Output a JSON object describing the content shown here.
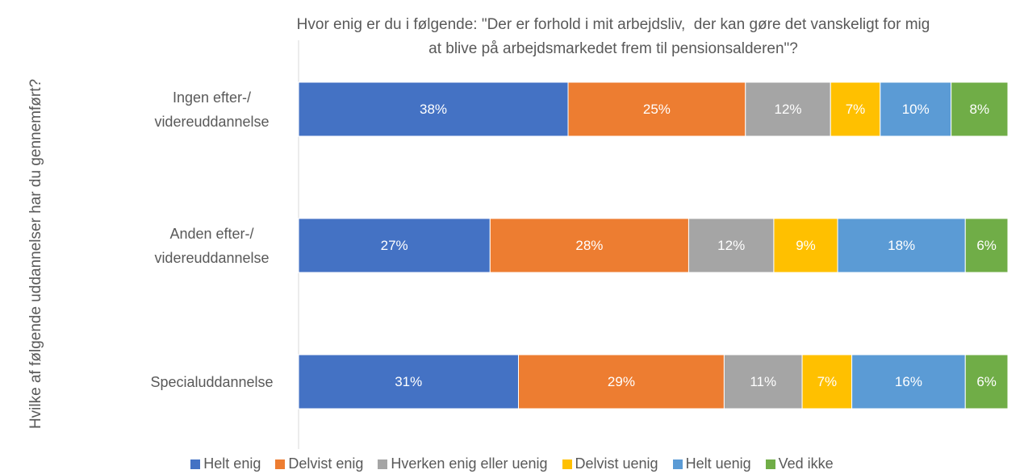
{
  "chart_data": {
    "type": "stacked-bar-horizontal",
    "title": [
      "Hvor enig er du i følgende: \"Der er forhold i mit arbejdsliv,  der kan gøre det vanskeligt for mig",
      "at blive på arbejdsmarkedet frem til pensionsalderen\"?"
    ],
    "y_axis_label": "Hvilke af følgende uddannelser har du gennemført?",
    "categories": [
      "Ingen efter-/ videreuddannelse",
      "Anden efter-/ videreuddannelse",
      "Specialuddannelse"
    ],
    "series": [
      {
        "name": "Helt enig",
        "color": "#4472c4",
        "values": [
          38,
          27,
          31
        ],
        "value_labels": [
          "38%",
          "27%",
          "31%"
        ]
      },
      {
        "name": "Delvist enig",
        "color": "#ed7d31",
        "values": [
          25,
          28,
          29
        ],
        "value_labels": [
          "25%",
          "28%",
          "29%"
        ]
      },
      {
        "name": "Hverken enig eller uenig",
        "color": "#a5a5a5",
        "values": [
          12,
          12,
          11
        ],
        "value_labels": [
          "12%",
          "12%",
          "11%"
        ]
      },
      {
        "name": "Delvist uenig",
        "color": "#ffc000",
        "values": [
          7,
          9,
          7
        ],
        "value_labels": [
          "7%",
          "9%",
          "7%"
        ]
      },
      {
        "name": "Helt uenig",
        "color": "#5b9bd5",
        "values": [
          10,
          18,
          16
        ],
        "value_labels": [
          "10%",
          "18%",
          "16%"
        ]
      },
      {
        "name": "Ved ikke",
        "color": "#70ad47",
        "values": [
          8,
          6,
          6
        ],
        "value_labels": [
          "8%",
          "6%",
          "6%"
        ]
      }
    ],
    "xlim": [
      0,
      100
    ],
    "legend": "bottom"
  }
}
